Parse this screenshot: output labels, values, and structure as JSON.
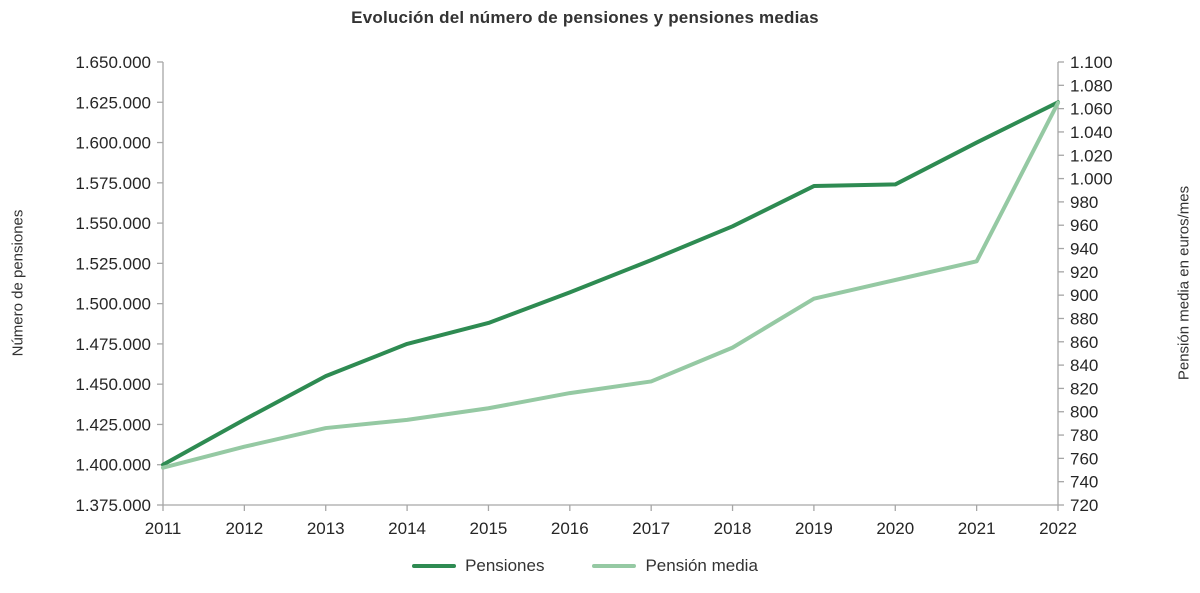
{
  "chart_data": {
    "type": "line",
    "title": "Evolución del número de pensiones y pensiones medias",
    "ylabel_left": "Número de pensiones",
    "ylabel_right": "Pensión media en euros/mes",
    "grid": false,
    "legend_position": "bottom",
    "x": [
      2011,
      2012,
      2013,
      2014,
      2015,
      2016,
      2017,
      2018,
      2019,
      2020,
      2021,
      2022
    ],
    "x_tick_labels": [
      "2011",
      "2012",
      "2013",
      "2014",
      "2015",
      "2016",
      "2017",
      "2018",
      "2019",
      "2020",
      "2021",
      "2022"
    ],
    "left_axis": {
      "min": 1375000,
      "max": 1650000,
      "ticks": [
        {
          "value": 1650000,
          "label": "1.650.000"
        },
        {
          "value": 1625000,
          "label": "1.625.000"
        },
        {
          "value": 1600000,
          "label": "1.600.000"
        },
        {
          "value": 1575000,
          "label": "1.575.000"
        },
        {
          "value": 1550000,
          "label": "1.550.000"
        },
        {
          "value": 1525000,
          "label": "1.525.000"
        },
        {
          "value": 1500000,
          "label": "1.500.000"
        },
        {
          "value": 1475000,
          "label": "1.475.000"
        },
        {
          "value": 1450000,
          "label": "1.450.000"
        },
        {
          "value": 1425000,
          "label": "1.425.000"
        },
        {
          "value": 1400000,
          "label": "1.400.000"
        },
        {
          "value": 1375000,
          "label": "1.375.000"
        }
      ]
    },
    "right_axis": {
      "min": 720,
      "max": 1100,
      "ticks": [
        {
          "value": 1100,
          "label": "1.100"
        },
        {
          "value": 1080,
          "label": "1.080"
        },
        {
          "value": 1060,
          "label": "1.060"
        },
        {
          "value": 1040,
          "label": "1.040"
        },
        {
          "value": 1020,
          "label": "1.020"
        },
        {
          "value": 1000,
          "label": "1.000"
        },
        {
          "value": 980,
          "label": "980"
        },
        {
          "value": 960,
          "label": "960"
        },
        {
          "value": 940,
          "label": "940"
        },
        {
          "value": 920,
          "label": "920"
        },
        {
          "value": 900,
          "label": "900"
        },
        {
          "value": 880,
          "label": "880"
        },
        {
          "value": 860,
          "label": "860"
        },
        {
          "value": 840,
          "label": "840"
        },
        {
          "value": 820,
          "label": "820"
        },
        {
          "value": 800,
          "label": "800"
        },
        {
          "value": 780,
          "label": "780"
        },
        {
          "value": 760,
          "label": "760"
        },
        {
          "value": 740,
          "label": "740"
        },
        {
          "value": 720,
          "label": "720"
        }
      ]
    },
    "series": [
      {
        "name": "Pensiones",
        "axis": "left",
        "color": "#2e8b52",
        "values": [
          1400000,
          1428000,
          1455000,
          1475000,
          1488000,
          1507000,
          1527000,
          1548000,
          1573000,
          1574000,
          1600000,
          1625000
        ]
      },
      {
        "name": "Pensión media",
        "axis": "right",
        "color": "#95c9a3",
        "values": [
          752,
          770,
          786,
          793,
          803,
          816,
          826,
          855,
          897,
          913,
          929,
          1065
        ]
      }
    ],
    "axis_line_color": "#a6a6a6"
  }
}
